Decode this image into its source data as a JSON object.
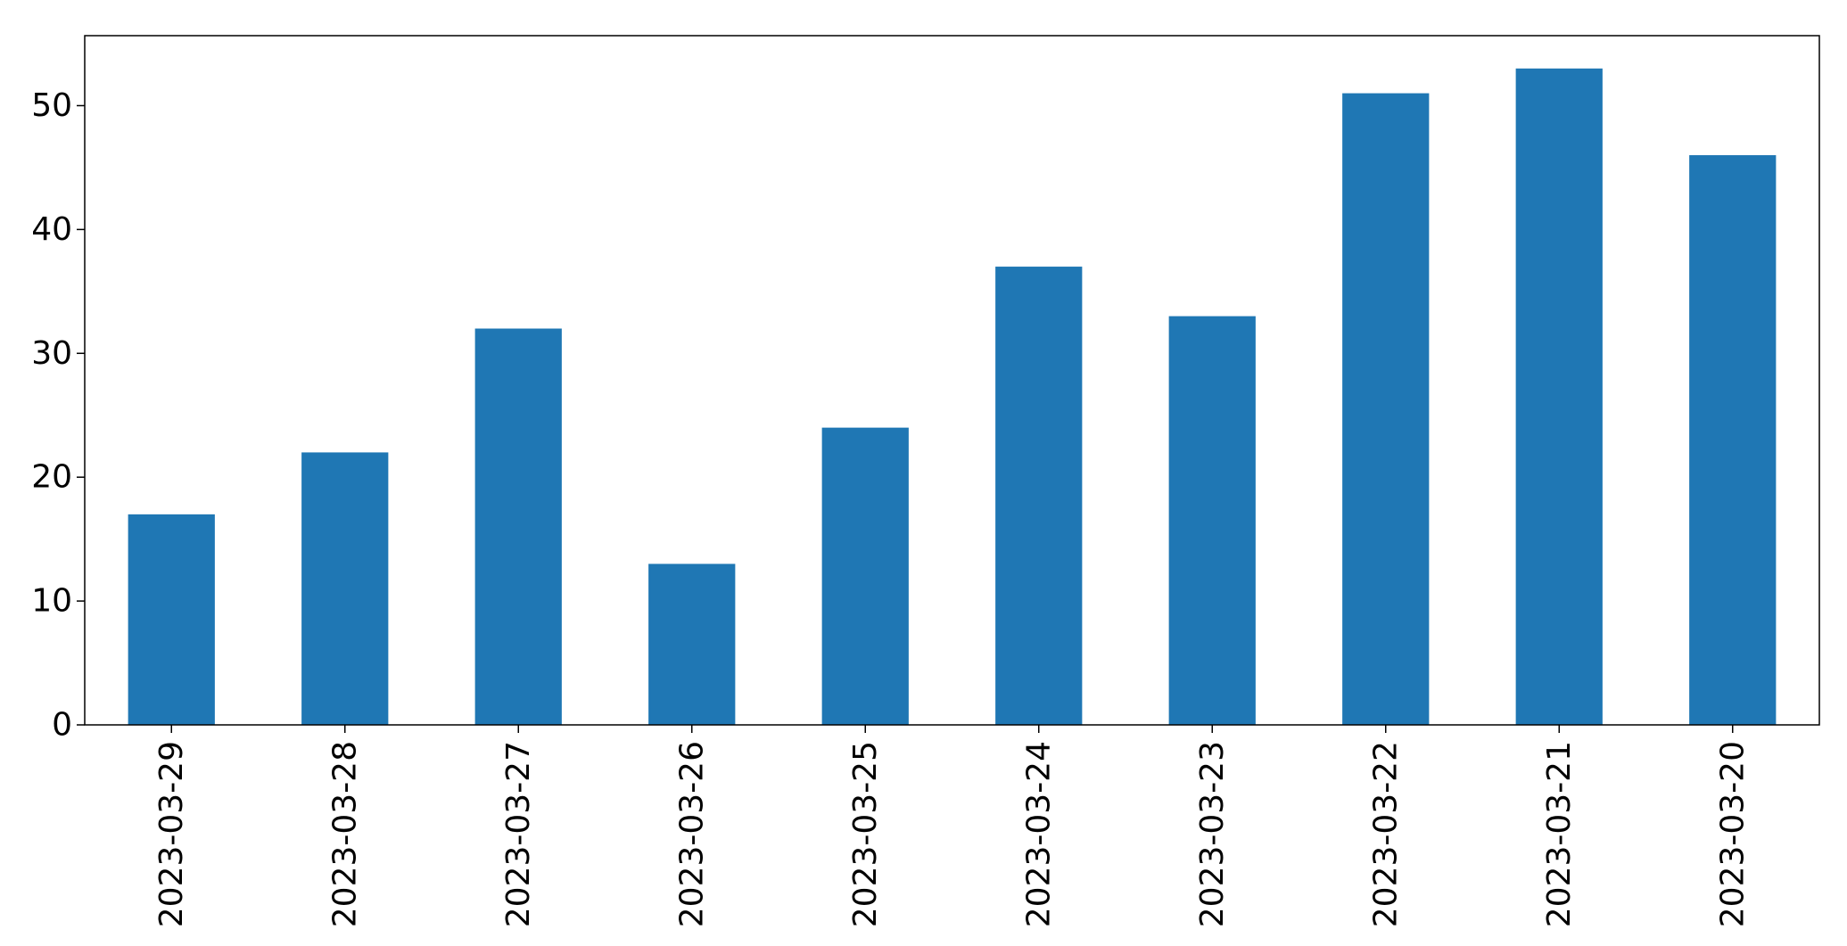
{
  "chart_data": {
    "type": "bar",
    "categories": [
      "2023-03-29",
      "2023-03-28",
      "2023-03-27",
      "2023-03-26",
      "2023-03-25",
      "2023-03-24",
      "2023-03-23",
      "2023-03-22",
      "2023-03-21",
      "2023-03-20"
    ],
    "values": [
      17,
      22,
      32,
      13,
      24,
      37,
      33,
      51,
      53,
      46
    ],
    "title": "",
    "xlabel": "",
    "ylabel": "",
    "ylim": [
      0,
      55.65
    ],
    "yticks": [
      0,
      10,
      20,
      30,
      40,
      50
    ],
    "grid": false,
    "legend": "none",
    "bar_color": "#1f77b4",
    "x_tick_rotation_deg": 90
  }
}
